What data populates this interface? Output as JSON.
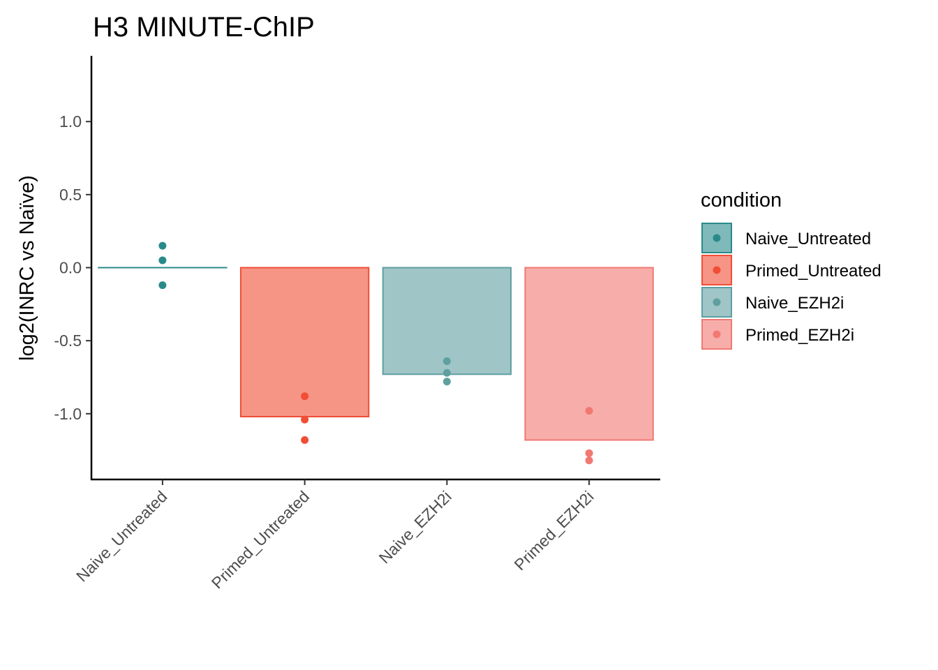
{
  "chart_data": {
    "type": "bar",
    "title": "H3 MINUTE-ChIP",
    "xlabel": "",
    "ylabel": "log2(INRC vs Naïve)",
    "categories": [
      "Naive_Untreated",
      "Primed_Untreated",
      "Naive_EZH2i",
      "Primed_EZH2i"
    ],
    "values": [
      0.0,
      -1.02,
      -0.73,
      -1.18
    ],
    "points": [
      [
        0.15,
        0.05,
        -0.12
      ],
      [
        -0.88,
        -1.04,
        -1.18
      ],
      [
        -0.64,
        -0.72,
        -0.78
      ],
      [
        -0.98,
        -1.27,
        -1.32
      ]
    ],
    "colors": [
      "#2a8a8a",
      "#f04e36",
      "#5f9fa0",
      "#f27872"
    ],
    "ylim": [
      -1.45,
      1.45
    ],
    "yticks": [
      -1.0,
      -0.5,
      0.0,
      0.5,
      1.0
    ],
    "ytick_labels": [
      "-1.0",
      "-0.5",
      "0.0",
      "0.5",
      "1.0"
    ],
    "grid": false,
    "legend": {
      "title": "condition",
      "position": "right",
      "entries": [
        "Naive_Untreated",
        "Primed_Untreated",
        "Naive_EZH2i",
        "Primed_EZH2i"
      ]
    }
  }
}
